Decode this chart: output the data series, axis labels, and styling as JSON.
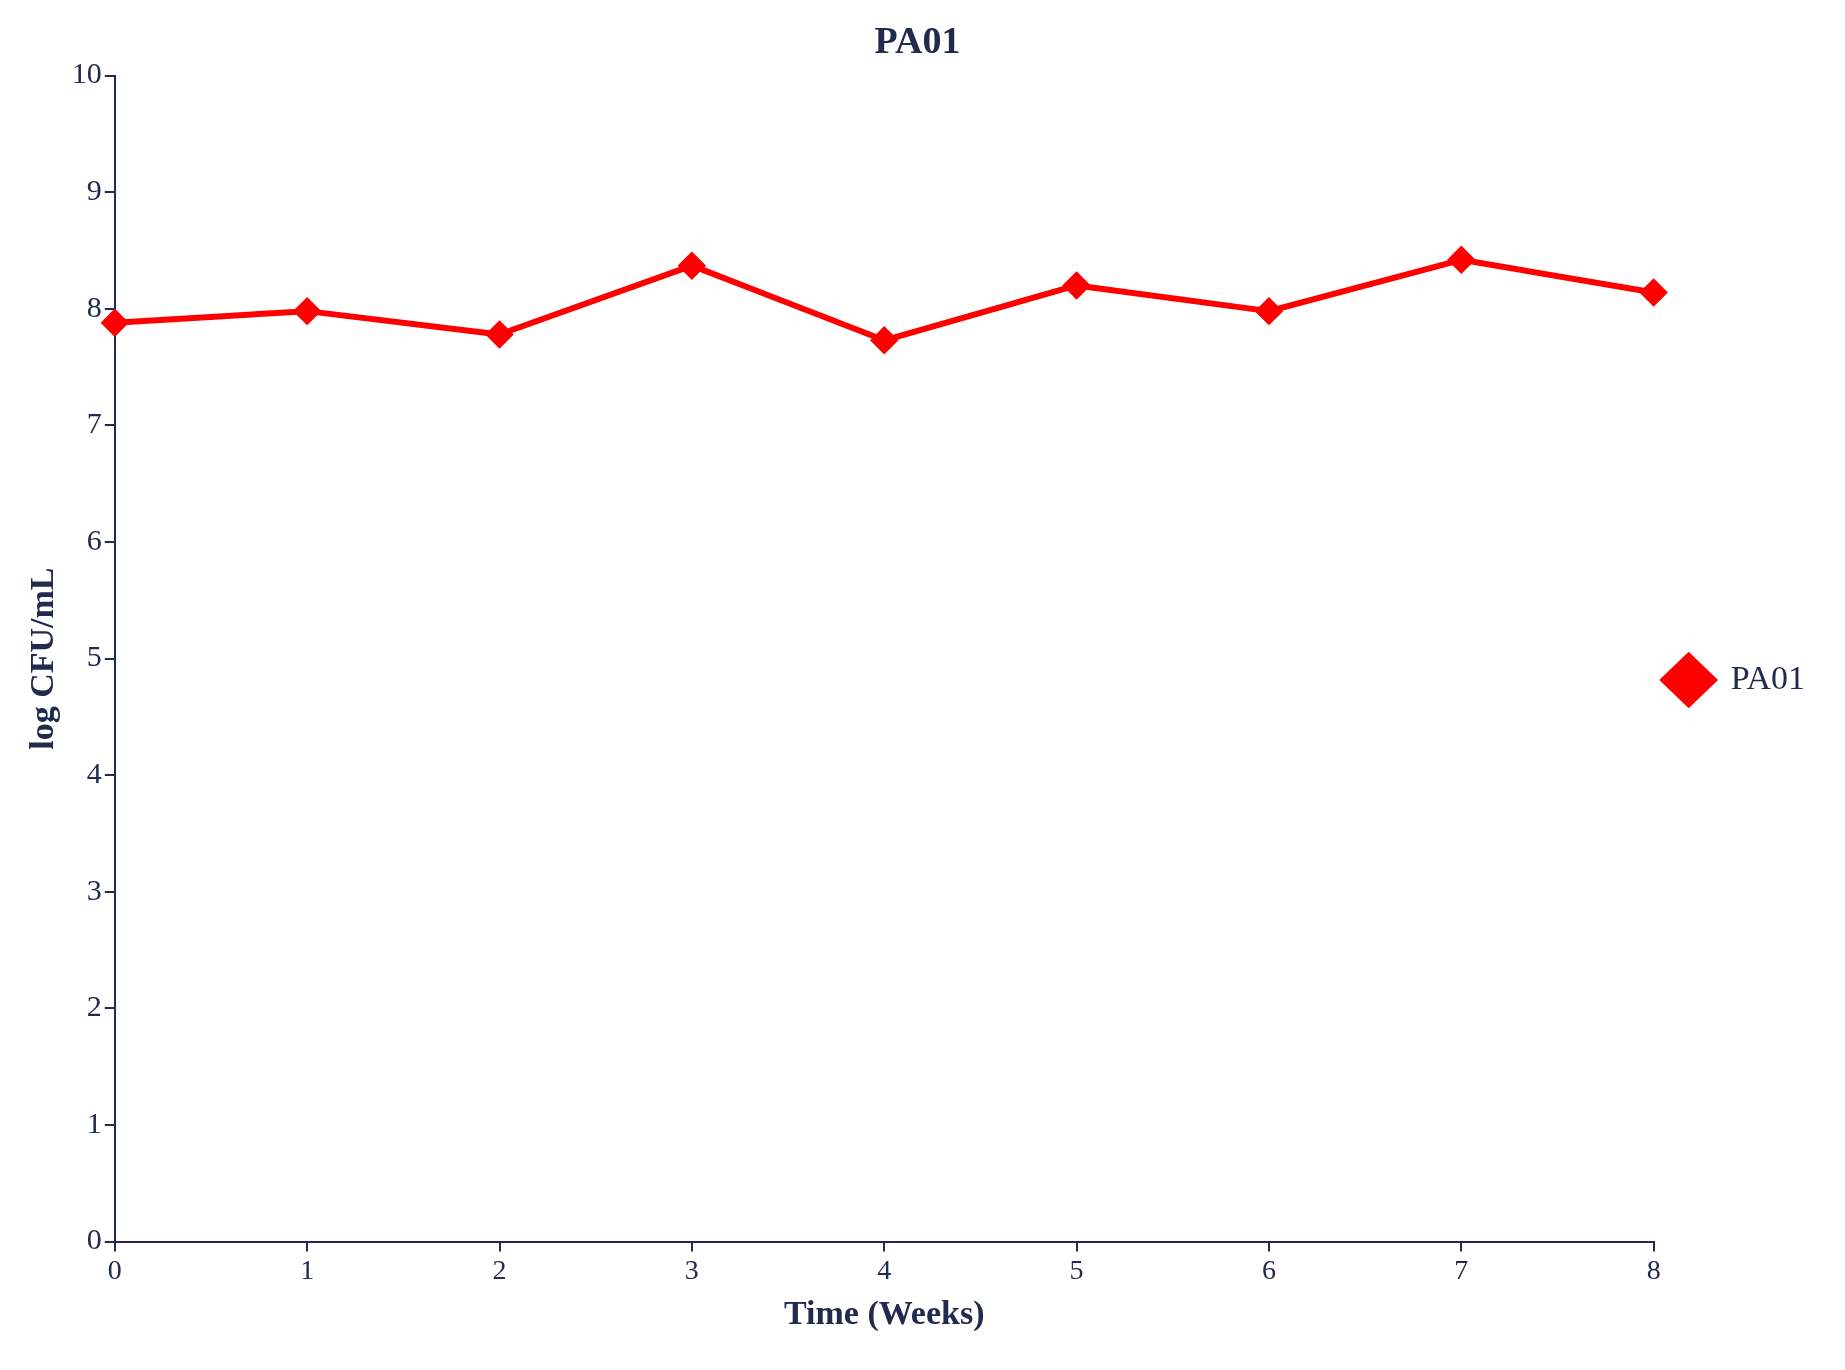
{
  "chart_data": {
    "type": "line",
    "title": "PA01",
    "xlabel": "Time (Weeks)",
    "ylabel": "log CFU/mL",
    "x": [
      0,
      1,
      2,
      3,
      4,
      5,
      6,
      7,
      8
    ],
    "series": [
      {
        "name": "PA01",
        "color": "#ff0000",
        "values": [
          7.88,
          7.98,
          7.78,
          8.37,
          7.73,
          8.2,
          7.98,
          8.42,
          8.14
        ]
      }
    ],
    "xlim": [
      0,
      8
    ],
    "xticks": [
      0,
      1,
      2,
      3,
      4,
      5,
      6,
      7,
      8
    ],
    "ylim": [
      0,
      10
    ],
    "yticks": [
      0,
      1,
      2,
      3,
      4,
      5,
      6,
      7,
      8,
      9,
      10
    ],
    "grid": false,
    "legend": "right",
    "marker": "diamond",
    "line_style": "solid"
  }
}
